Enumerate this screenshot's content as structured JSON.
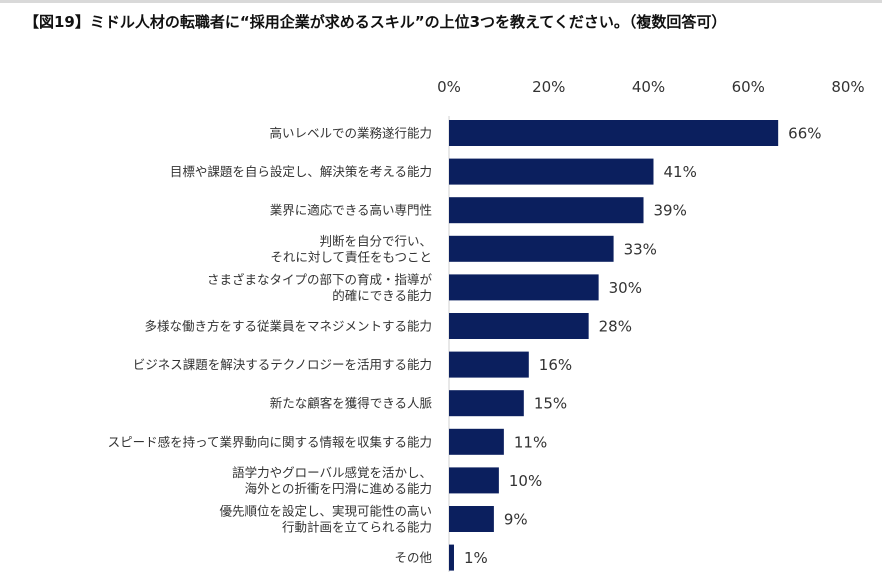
{
  "chart_data": {
    "type": "bar",
    "orientation": "horizontal",
    "title": "【図19】ミドル人材の転職者に“採用企業が求めるスキル”の上位3つを教えてください。（複数回答可）",
    "categories": [
      "高いレベルでの業務遂行能力",
      "目標や課題を自ら設定し、解決策を考える能力",
      "業界に適応できる高い専門性",
      "判断を自分で行い、\nそれに対して責任をもつこと",
      "さまざまなタイプの部下の育成・指導が\n的確にできる能力",
      "多様な働き方をする従業員をマネジメントする能力",
      "ビジネス課題を解決するテクノロジーを活用する能力",
      "新たな顧客を獲得できる人脈",
      "スピード感を持って業界動向に関する情報を収集する能力",
      "語学力やグローバル感覚を活かし、\n海外との折衝を円滑に進める能力",
      "優先順位を設定し、実現可能性の高い\n行動計画を立てられる能力",
      "その他"
    ],
    "values": [
      66,
      41,
      39,
      33,
      30,
      28,
      16,
      15,
      11,
      10,
      9,
      1
    ],
    "value_labels": [
      "66%",
      "41%",
      "39%",
      "33%",
      "30%",
      "28%",
      "16%",
      "15%",
      "11%",
      "10%",
      "9%",
      "1%"
    ],
    "xlim": [
      0,
      80
    ],
    "xticks": [
      "0%",
      "20%",
      "40%",
      "60%",
      "80%"
    ],
    "axis_position": "top",
    "grid": false,
    "bar_color": "#0b1f5e"
  }
}
